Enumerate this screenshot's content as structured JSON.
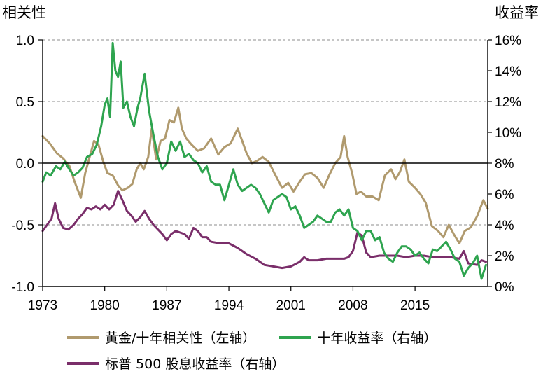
{
  "chart_data": {
    "type": "line",
    "left_axis_title": "相关性",
    "right_axis_title": "收益率",
    "left_ylim": [
      -1.0,
      1.0
    ],
    "left_yticks": [
      "1.0",
      "0.5",
      "0.0",
      "-0.5",
      "-1.0"
    ],
    "right_ylim": [
      0,
      16
    ],
    "right_yticks": [
      "16%",
      "14%",
      "12%",
      "10%",
      "8%",
      "6%",
      "4%",
      "2%",
      "0%"
    ],
    "xlim": [
      1973,
      2023.2
    ],
    "xticks": [
      "1973",
      "1980",
      "1987",
      "1994",
      "2001",
      "2008",
      "2015"
    ],
    "grid": "dashed horizontal at left-axis ticks",
    "legend_position": "bottom",
    "series": [
      {
        "name": "黄金/十年相关性（左轴）",
        "axis": "left",
        "color": "#B09A6E",
        "x": [
          1973.0,
          1973.8,
          1974.6,
          1975.3,
          1976.0,
          1976.6,
          1977.3,
          1977.8,
          1978.3,
          1978.8,
          1979.3,
          1979.8,
          1980.3,
          1980.9,
          1981.5,
          1982.0,
          1982.6,
          1983.1,
          1983.6,
          1984.0,
          1984.4,
          1984.9,
          1985.3,
          1985.8,
          1986.3,
          1986.8,
          1987.3,
          1987.8,
          1988.3,
          1988.7,
          1989.2,
          1989.8,
          1990.5,
          1991.2,
          1992.0,
          1992.8,
          1993.5,
          1994.2,
          1995.0,
          1995.5,
          1996.0,
          1996.6,
          1997.2,
          1997.8,
          1998.5,
          1999.2,
          2000.0,
          2000.7,
          2001.3,
          2002.0,
          2002.6,
          2003.3,
          2004.0,
          2004.7,
          2005.3,
          2006.0,
          2006.6,
          2007.0,
          2007.4,
          2007.9,
          2008.4,
          2008.9,
          2009.5,
          2010.2,
          2010.9,
          2011.6,
          2012.3,
          2012.8,
          2013.3,
          2013.8,
          2014.3,
          2015.0,
          2015.6,
          2016.2,
          2016.9,
          2017.6,
          2018.2,
          2018.8,
          2019.4,
          2020.0,
          2020.6,
          2021.3,
          2022.0,
          2022.7,
          2023.2
        ],
        "y": [
          0.22,
          0.16,
          0.08,
          0.04,
          -0.02,
          -0.15,
          -0.28,
          -0.08,
          0.05,
          0.18,
          0.15,
          0.02,
          -0.08,
          -0.1,
          -0.18,
          -0.22,
          -0.2,
          -0.17,
          -0.05,
          0.0,
          -0.05,
          0.05,
          0.28,
          0.03,
          0.18,
          0.2,
          0.35,
          0.33,
          0.45,
          0.28,
          0.2,
          0.15,
          0.1,
          0.12,
          0.2,
          0.07,
          0.13,
          0.16,
          0.28,
          0.18,
          0.08,
          0.0,
          0.02,
          0.05,
          0.01,
          -0.09,
          -0.2,
          -0.16,
          -0.23,
          -0.15,
          -0.09,
          -0.08,
          -0.12,
          -0.2,
          -0.1,
          0.0,
          0.05,
          0.22,
          0.05,
          -0.08,
          -0.25,
          -0.23,
          -0.27,
          -0.27,
          -0.3,
          -0.1,
          -0.05,
          -0.13,
          -0.07,
          0.03,
          -0.15,
          -0.2,
          -0.25,
          -0.32,
          -0.51,
          -0.55,
          -0.6,
          -0.5,
          -0.58,
          -0.65,
          -0.55,
          -0.52,
          -0.43,
          -0.3,
          -0.37
        ]
      },
      {
        "name": "十年收益率（右轴）",
        "axis": "right",
        "color": "#2EA44F",
        "x": [
          1973.0,
          1973.4,
          1973.9,
          1974.5,
          1975.0,
          1975.5,
          1976.0,
          1976.5,
          1977.0,
          1977.5,
          1978.0,
          1978.6,
          1979.1,
          1979.6,
          1980.0,
          1980.3,
          1980.6,
          1980.9,
          1981.2,
          1981.5,
          1981.8,
          1982.1,
          1982.5,
          1982.9,
          1983.3,
          1983.7,
          1984.0,
          1984.5,
          1985.0,
          1985.5,
          1986.0,
          1986.5,
          1987.0,
          1987.5,
          1988.0,
          1988.5,
          1989.0,
          1989.5,
          1990.0,
          1990.5,
          1991.0,
          1991.5,
          1992.0,
          1992.5,
          1993.0,
          1993.5,
          1994.0,
          1994.5,
          1995.0,
          1995.5,
          1996.0,
          1996.5,
          1997.0,
          1997.5,
          1998.0,
          1998.5,
          1999.0,
          1999.5,
          2000.0,
          2000.5,
          2001.0,
          2001.5,
          2002.0,
          2002.5,
          2003.0,
          2003.5,
          2004.0,
          2004.5,
          2005.0,
          2005.5,
          2006.0,
          2006.5,
          2007.0,
          2007.5,
          2008.0,
          2008.5,
          2009.0,
          2009.5,
          2010.0,
          2010.5,
          2011.0,
          2011.5,
          2012.0,
          2012.5,
          2013.0,
          2013.5,
          2014.0,
          2014.5,
          2015.0,
          2015.5,
          2016.0,
          2016.5,
          2017.0,
          2017.5,
          2018.0,
          2018.5,
          2019.0,
          2019.5,
          2020.0,
          2020.5,
          2021.0,
          2021.5,
          2022.0,
          2022.5,
          2023.0
        ],
        "y": [
          6.8,
          7.4,
          7.2,
          7.8,
          7.6,
          8.1,
          7.6,
          7.2,
          7.4,
          7.7,
          8.4,
          8.6,
          9.2,
          10.4,
          11.8,
          12.2,
          11.0,
          15.8,
          14.0,
          13.6,
          14.6,
          11.6,
          12.0,
          11.0,
          10.4,
          11.6,
          12.2,
          13.8,
          11.4,
          9.8,
          8.4,
          7.6,
          8.0,
          9.4,
          8.8,
          9.4,
          8.4,
          8.6,
          8.2,
          8.0,
          7.4,
          7.8,
          6.8,
          6.6,
          6.6,
          5.6,
          6.6,
          7.6,
          6.6,
          6.2,
          6.4,
          6.6,
          6.4,
          6.0,
          5.4,
          4.8,
          5.6,
          5.8,
          6.0,
          5.8,
          5.0,
          5.2,
          4.6,
          3.8,
          4.0,
          4.2,
          4.6,
          4.4,
          4.2,
          4.2,
          4.8,
          5.0,
          4.6,
          5.0,
          3.8,
          3.6,
          3.0,
          3.6,
          3.6,
          3.0,
          3.2,
          2.2,
          1.8,
          1.6,
          2.2,
          2.6,
          2.6,
          2.4,
          2.0,
          2.2,
          1.8,
          1.5,
          2.4,
          2.3,
          2.6,
          2.9,
          2.4,
          1.8,
          1.6,
          0.7,
          1.2,
          1.5,
          2.0,
          0.5,
          1.4
        ]
      },
      {
        "name": "标普 500 股息收益率（右轴）",
        "axis": "right",
        "color": "#7A2E6A",
        "x": [
          1973.0,
          1973.5,
          1974.0,
          1974.4,
          1974.8,
          1975.3,
          1975.9,
          1976.5,
          1977.0,
          1977.5,
          1978.0,
          1978.5,
          1979.0,
          1979.5,
          1980.0,
          1980.5,
          1981.0,
          1981.5,
          1982.0,
          1982.5,
          1983.0,
          1983.5,
          1984.0,
          1984.5,
          1985.0,
          1985.5,
          1986.0,
          1986.5,
          1987.0,
          1987.5,
          1988.0,
          1988.5,
          1989.0,
          1989.5,
          1990.0,
          1990.5,
          1991.0,
          1991.5,
          1992.0,
          1993.0,
          1994.0,
          1995.0,
          1996.0,
          1997.0,
          1998.0,
          1999.0,
          2000.0,
          2001.0,
          2002.0,
          2002.5,
          2003.0,
          2004.0,
          2005.0,
          2006.0,
          2007.0,
          2007.5,
          2008.0,
          2008.5,
          2009.0,
          2009.5,
          2010.0,
          2011.0,
          2012.0,
          2013.0,
          2014.0,
          2015.0,
          2016.0,
          2017.0,
          2018.0,
          2019.0,
          2020.0,
          2020.5,
          2021.0,
          2022.0,
          2022.5,
          2023.0
        ],
        "y": [
          3.6,
          4.0,
          4.4,
          5.4,
          4.4,
          3.8,
          3.7,
          4.0,
          4.4,
          4.7,
          5.1,
          5.0,
          5.2,
          5.0,
          5.3,
          5.0,
          5.3,
          6.2,
          5.6,
          4.9,
          4.6,
          4.2,
          4.5,
          4.9,
          4.4,
          4.0,
          3.7,
          3.4,
          3.0,
          3.4,
          3.6,
          3.5,
          3.4,
          3.1,
          3.8,
          3.6,
          3.2,
          3.2,
          2.9,
          2.8,
          2.8,
          2.5,
          2.1,
          1.8,
          1.4,
          1.3,
          1.2,
          1.3,
          1.6,
          1.9,
          1.7,
          1.7,
          1.8,
          1.8,
          1.8,
          1.9,
          2.3,
          3.5,
          3.3,
          2.2,
          1.9,
          2.0,
          2.0,
          2.0,
          1.9,
          2.0,
          2.0,
          1.9,
          1.9,
          1.9,
          1.8,
          2.3,
          1.5,
          1.4,
          1.7,
          1.6
        ]
      }
    ]
  }
}
